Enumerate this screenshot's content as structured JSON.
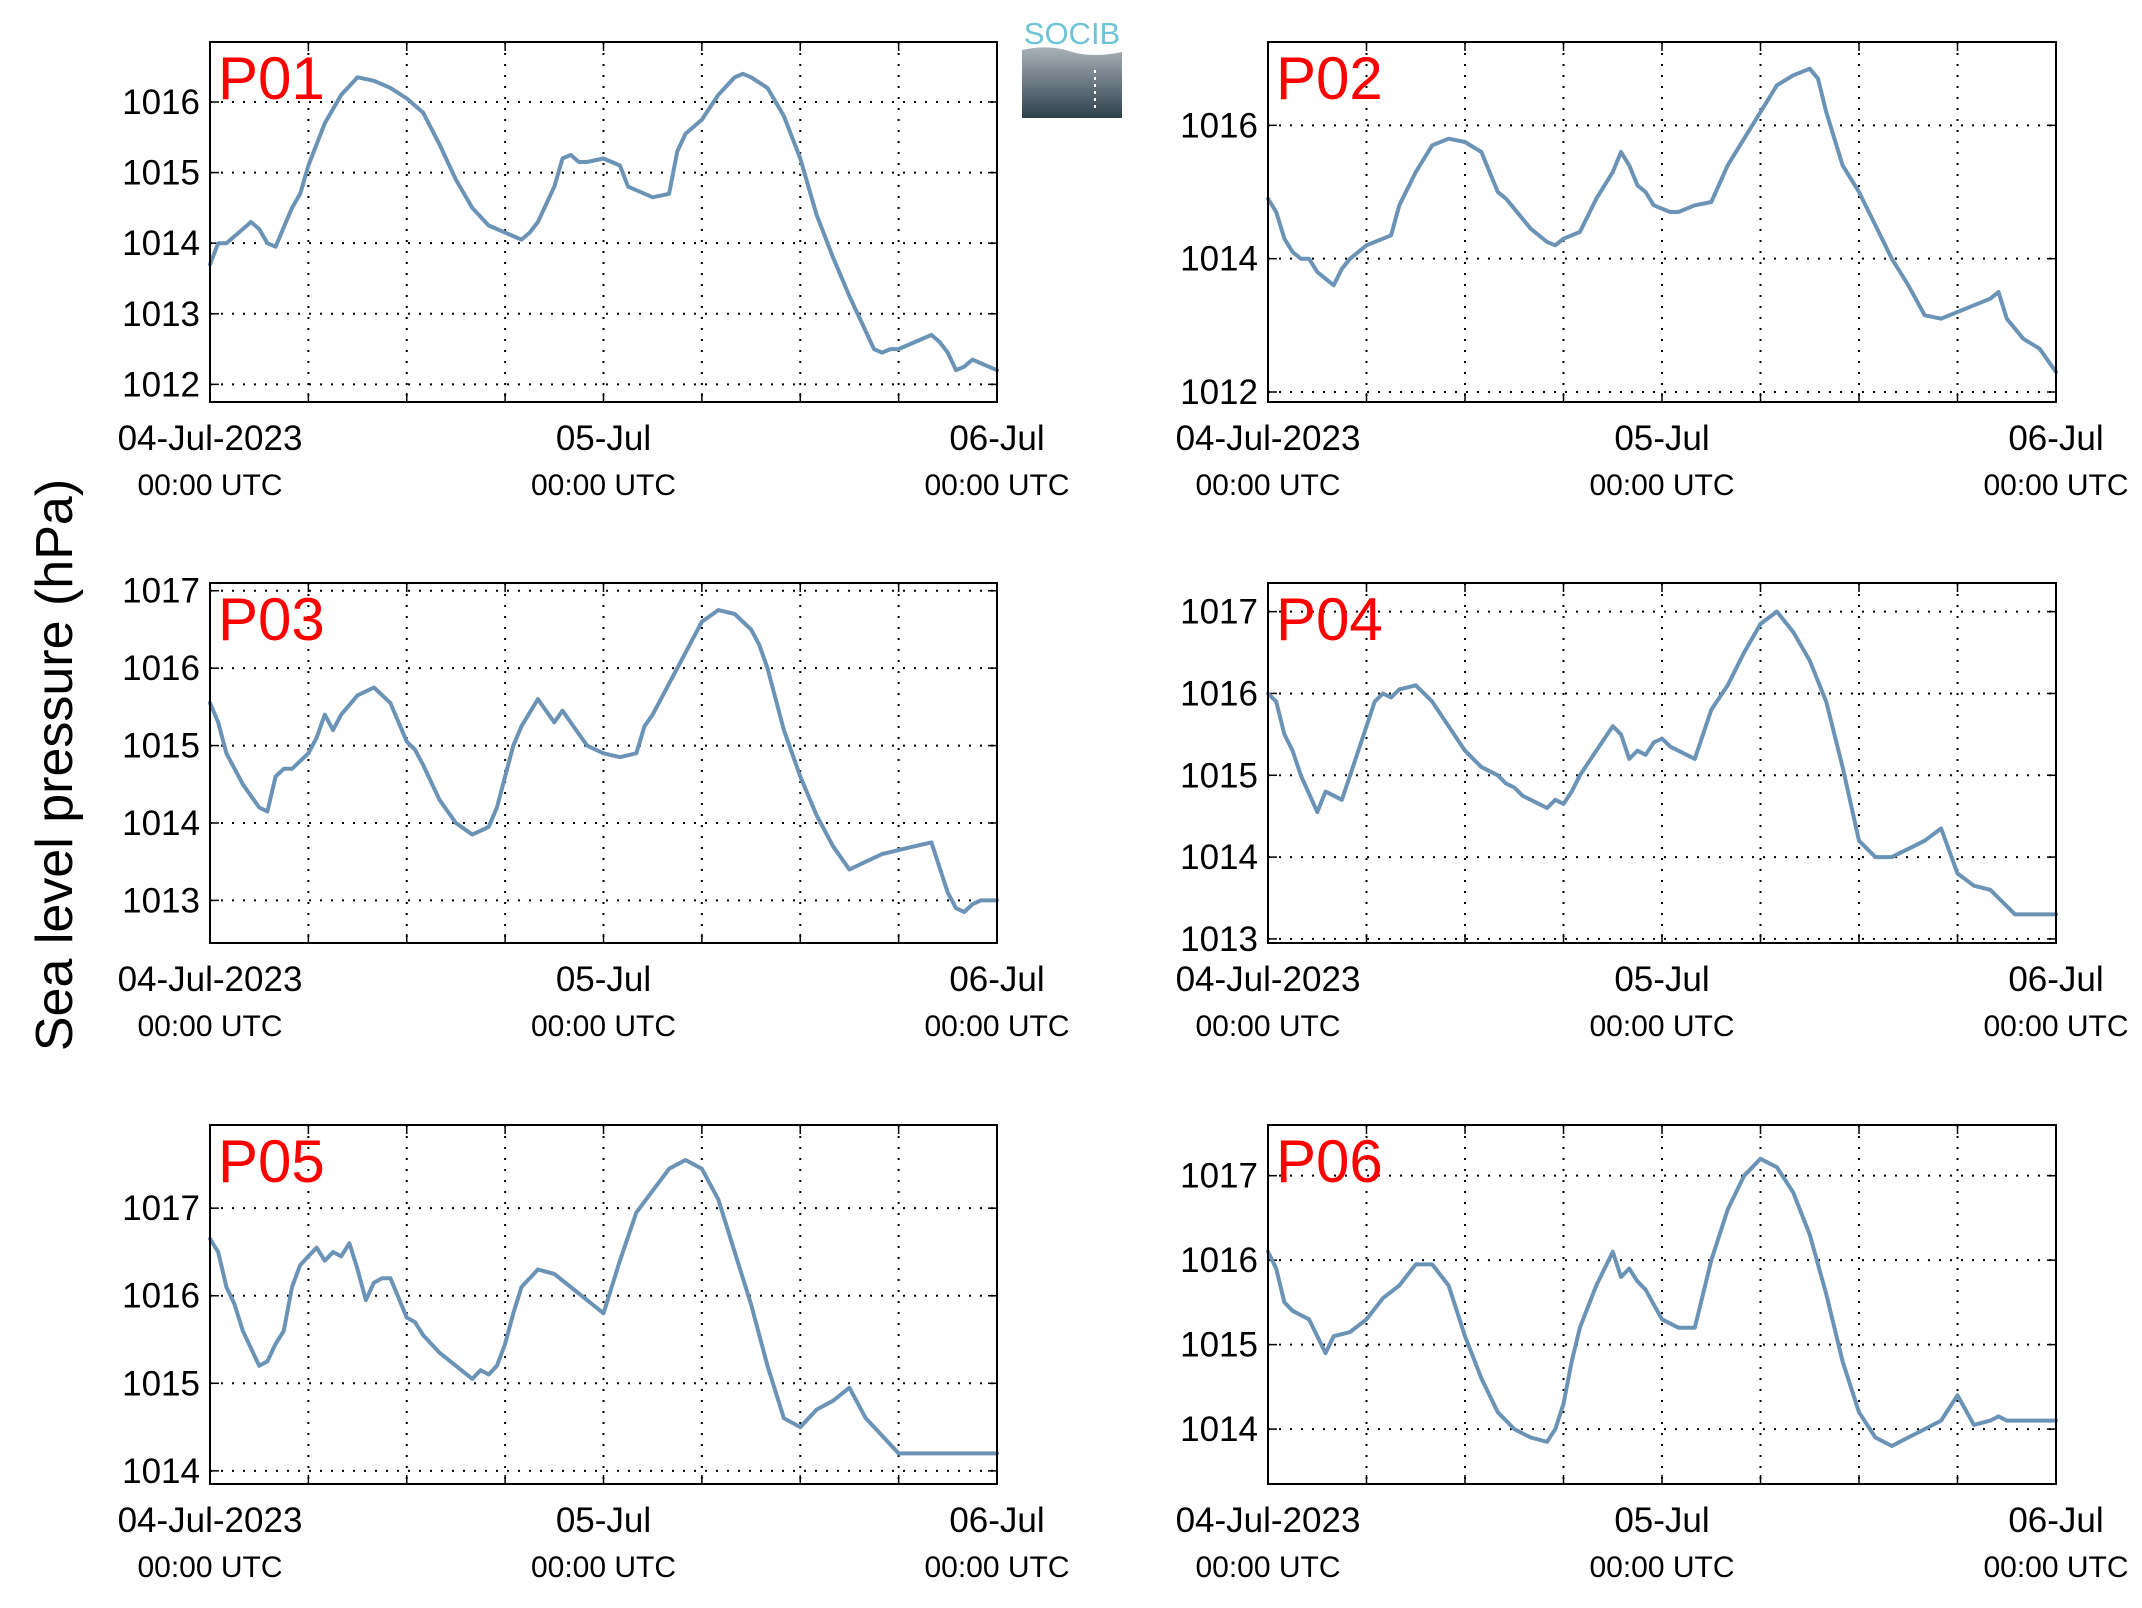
{
  "figure": {
    "ylabel": "Sea level pressure (hPa)",
    "logo_text": "SOCIB",
    "line_color": "#6a93b6",
    "title_color": "#ff0000"
  },
  "chart_data": [
    {
      "type": "line",
      "title": "P01",
      "ylabel": "Sea level pressure (hPa)",
      "xlim": [
        0,
        48
      ],
      "ylim": [
        1011.75,
        1016.85
      ],
      "yticks": [
        1012,
        1013,
        1014,
        1015,
        1016
      ],
      "x_ticks": [
        {
          "x": 0,
          "label": "04-Jul-2023",
          "sub": "00:00 UTC"
        },
        {
          "x": 24,
          "label": "05-Jul",
          "sub": "00:00 UTC"
        },
        {
          "x": 48,
          "label": "06-Jul",
          "sub": "00:00 UTC"
        }
      ],
      "x_grid": [
        6,
        12,
        18,
        24,
        30,
        36,
        42
      ],
      "grid": true,
      "x": [
        0,
        0.5,
        1,
        1.5,
        2,
        2.5,
        3,
        3.5,
        4,
        5,
        5.5,
        6,
        6.5,
        7,
        8,
        9,
        10,
        11,
        12,
        13,
        14,
        15,
        16,
        17,
        18,
        18.5,
        19,
        19.5,
        20,
        21,
        21.5,
        22,
        22.5,
        23,
        24,
        25,
        25.5,
        26,
        27,
        28,
        28.5,
        29,
        29.5,
        30,
        31,
        32,
        32.5,
        33,
        34,
        35,
        36,
        37,
        38,
        39,
        40,
        40.5,
        41,
        41.5,
        42,
        43,
        44,
        44.5,
        45,
        45.5,
        46,
        46.5,
        47,
        48
      ],
      "y": [
        1013.7,
        1014.0,
        1014.0,
        1014.1,
        1014.2,
        1014.3,
        1014.2,
        1014.0,
        1013.95,
        1014.5,
        1014.7,
        1015.1,
        1015.4,
        1015.7,
        1016.1,
        1016.35,
        1016.3,
        1016.2,
        1016.05,
        1015.85,
        1015.4,
        1014.9,
        1014.5,
        1014.25,
        1014.15,
        1014.1,
        1014.05,
        1014.15,
        1014.3,
        1014.8,
        1015.2,
        1015.25,
        1015.15,
        1015.15,
        1015.2,
        1015.1,
        1014.8,
        1014.75,
        1014.65,
        1014.7,
        1015.3,
        1015.55,
        1015.65,
        1015.75,
        1016.1,
        1016.35,
        1016.4,
        1016.35,
        1016.2,
        1015.8,
        1015.2,
        1014.4,
        1013.8,
        1013.25,
        1012.75,
        1012.5,
        1012.45,
        1012.5,
        1012.5,
        1012.6,
        1012.7,
        1012.6,
        1012.45,
        1012.2,
        1012.25,
        1012.35,
        1012.3,
        1012.2
      ]
    },
    {
      "type": "line",
      "title": "P02",
      "ylabel": "Sea level pressure (hPa)",
      "xlim": [
        0,
        48
      ],
      "ylim": [
        1011.85,
        1017.25
      ],
      "yticks": [
        1012,
        1014,
        1016
      ],
      "x_ticks": [
        {
          "x": 0,
          "label": "04-Jul-2023",
          "sub": "00:00 UTC"
        },
        {
          "x": 24,
          "label": "05-Jul",
          "sub": "00:00 UTC"
        },
        {
          "x": 48,
          "label": "06-Jul",
          "sub": "00:00 UTC"
        }
      ],
      "x_grid": [
        6,
        12,
        18,
        24,
        30,
        36,
        42
      ],
      "grid": true,
      "x": [
        0,
        0.5,
        1,
        1.5,
        2,
        2.5,
        3,
        3.5,
        4,
        4.5,
        5,
        6,
        6.5,
        7,
        7.5,
        8,
        9,
        10,
        11,
        12,
        13,
        14,
        14.5,
        15,
        16,
        17,
        17.5,
        18,
        18.5,
        19,
        20,
        21,
        21.5,
        22,
        22.5,
        23,
        23.5,
        24,
        24.5,
        25,
        26,
        27,
        28,
        29,
        30,
        31,
        32,
        33,
        33.5,
        34,
        35,
        36,
        37,
        38,
        39,
        40,
        41,
        42,
        42.5,
        43,
        44,
        44.5,
        45,
        46,
        47,
        48
      ],
      "y": [
        1014.9,
        1014.7,
        1014.3,
        1014.1,
        1014.0,
        1014.0,
        1013.8,
        1013.7,
        1013.6,
        1013.85,
        1014.0,
        1014.2,
        1014.25,
        1014.3,
        1014.35,
        1014.8,
        1015.3,
        1015.7,
        1015.8,
        1015.75,
        1015.6,
        1015.0,
        1014.9,
        1014.75,
        1014.45,
        1014.25,
        1014.2,
        1014.3,
        1014.35,
        1014.4,
        1014.9,
        1015.3,
        1015.6,
        1015.4,
        1015.1,
        1015.0,
        1014.8,
        1014.75,
        1014.7,
        1014.7,
        1014.8,
        1014.85,
        1015.4,
        1015.8,
        1016.2,
        1016.6,
        1016.75,
        1016.85,
        1016.7,
        1016.2,
        1015.4,
        1015.0,
        1014.5,
        1014.0,
        1013.6,
        1013.15,
        1013.1,
        1013.2,
        1013.25,
        1013.3,
        1013.4,
        1013.5,
        1013.1,
        1012.8,
        1012.65,
        1012.3
      ]
    },
    {
      "type": "line",
      "title": "P03",
      "ylabel": "Sea level pressure (hPa)",
      "xlim": [
        0,
        48
      ],
      "ylim": [
        1012.45,
        1017.1
      ],
      "yticks": [
        1013,
        1014,
        1015,
        1016,
        1017
      ],
      "x_ticks": [
        {
          "x": 0,
          "label": "04-Jul-2023",
          "sub": "00:00 UTC"
        },
        {
          "x": 24,
          "label": "05-Jul",
          "sub": "00:00 UTC"
        },
        {
          "x": 48,
          "label": "06-Jul",
          "sub": "00:00 UTC"
        }
      ],
      "x_grid": [
        6,
        12,
        18,
        24,
        30,
        36,
        42
      ],
      "grid": true,
      "x": [
        0,
        0.5,
        1,
        1.5,
        2,
        3,
        3.5,
        4,
        4.5,
        5,
        6,
        6.5,
        7,
        7.5,
        8,
        9,
        10,
        11,
        12,
        12.5,
        13,
        14,
        15,
        16,
        17,
        17.5,
        18,
        18.5,
        19,
        20,
        21,
        21.5,
        22,
        22.5,
        23,
        23.5,
        24,
        25,
        26,
        26.5,
        27,
        28,
        29,
        30,
        31,
        32,
        33,
        33.5,
        34,
        35,
        36,
        37,
        38,
        39,
        40,
        41,
        42,
        43,
        44,
        45,
        45.5,
        46,
        46.5,
        47,
        48
      ],
      "y": [
        1015.55,
        1015.3,
        1014.9,
        1014.7,
        1014.5,
        1014.2,
        1014.15,
        1014.6,
        1014.7,
        1014.7,
        1014.9,
        1015.1,
        1015.4,
        1015.2,
        1015.4,
        1015.65,
        1015.75,
        1015.55,
        1015.05,
        1014.95,
        1014.75,
        1014.3,
        1014.0,
        1013.85,
        1013.95,
        1014.2,
        1014.6,
        1015.0,
        1015.25,
        1015.6,
        1015.3,
        1015.45,
        1015.3,
        1015.15,
        1015.0,
        1014.95,
        1014.9,
        1014.85,
        1014.9,
        1015.25,
        1015.4,
        1015.8,
        1016.2,
        1016.6,
        1016.75,
        1016.7,
        1016.5,
        1016.3,
        1016.0,
        1015.2,
        1014.6,
        1014.1,
        1013.7,
        1013.4,
        1013.5,
        1013.6,
        1013.65,
        1013.7,
        1013.75,
        1013.1,
        1012.9,
        1012.85,
        1012.95,
        1013.0,
        1013.0
      ]
    },
    {
      "type": "line",
      "title": "P04",
      "ylabel": "Sea level pressure (hPa)",
      "xlim": [
        0,
        48
      ],
      "ylim": [
        1012.95,
        1017.35
      ],
      "yticks": [
        1013,
        1014,
        1015,
        1016,
        1017
      ],
      "x_ticks": [
        {
          "x": 0,
          "label": "04-Jul-2023",
          "sub": "00:00 UTC"
        },
        {
          "x": 24,
          "label": "05-Jul",
          "sub": "00:00 UTC"
        },
        {
          "x": 48,
          "label": "06-Jul",
          "sub": "00:00 UTC"
        }
      ],
      "x_grid": [
        6,
        12,
        18,
        24,
        30,
        36,
        42
      ],
      "grid": true,
      "x": [
        0,
        0.5,
        1,
        1.5,
        2,
        3,
        3.5,
        4,
        4.5,
        5,
        6,
        6.5,
        7,
        7.5,
        8,
        9,
        10,
        11,
        12,
        13,
        14,
        14.5,
        15,
        15.5,
        16,
        17,
        17.5,
        18,
        18.5,
        19,
        20,
        21,
        21.5,
        22,
        22.5,
        23,
        23.5,
        24,
        24.5,
        25,
        26,
        27,
        28,
        29,
        30,
        31,
        32,
        33,
        34,
        35,
        36,
        37,
        38,
        39,
        40,
        41,
        42,
        43,
        44,
        44.5,
        45,
        45.5,
        46,
        46.5,
        47,
        48
      ],
      "y": [
        1016.0,
        1015.9,
        1015.5,
        1015.3,
        1015.0,
        1014.55,
        1014.8,
        1014.75,
        1014.7,
        1015.0,
        1015.6,
        1015.9,
        1016.0,
        1015.95,
        1016.05,
        1016.1,
        1015.9,
        1015.6,
        1015.3,
        1015.1,
        1015.0,
        1014.9,
        1014.85,
        1014.75,
        1014.7,
        1014.6,
        1014.7,
        1014.65,
        1014.8,
        1015.0,
        1015.3,
        1015.6,
        1015.5,
        1015.2,
        1015.3,
        1015.25,
        1015.4,
        1015.45,
        1015.35,
        1015.3,
        1015.2,
        1015.8,
        1016.1,
        1016.5,
        1016.85,
        1017.0,
        1016.75,
        1016.4,
        1015.9,
        1015.1,
        1014.2,
        1014.0,
        1014.0,
        1014.1,
        1014.2,
        1014.35,
        1013.8,
        1013.65,
        1013.6,
        1013.5,
        1013.4,
        1013.3,
        1013.3,
        1013.3,
        1013.3,
        1013.3
      ]
    },
    {
      "type": "line",
      "title": "P05",
      "ylabel": "Sea level pressure (hPa)",
      "xlim": [
        0,
        48
      ],
      "ylim": [
        1013.85,
        1017.95
      ],
      "yticks": [
        1014,
        1015,
        1016,
        1017
      ],
      "x_ticks": [
        {
          "x": 0,
          "label": "04-Jul-2023",
          "sub": "00:00 UTC"
        },
        {
          "x": 24,
          "label": "05-Jul",
          "sub": "00:00 UTC"
        },
        {
          "x": 48,
          "label": "06-Jul",
          "sub": "00:00 UTC"
        }
      ],
      "x_grid": [
        6,
        12,
        18,
        24,
        30,
        36,
        42
      ],
      "grid": true,
      "x": [
        0,
        0.5,
        1,
        1.5,
        2,
        3,
        3.5,
        4,
        4.5,
        5,
        5.5,
        6,
        6.5,
        7,
        7.5,
        8,
        8.5,
        9,
        9.5,
        10,
        10.5,
        11,
        12,
        12.5,
        13,
        14,
        15,
        16,
        16.5,
        17,
        17.5,
        18,
        18.5,
        19,
        20,
        21,
        22,
        23,
        24,
        25,
        26,
        27,
        28,
        29,
        30,
        31,
        32,
        33,
        34,
        35,
        36,
        37,
        38,
        39,
        40,
        41,
        42,
        43,
        43.5,
        44,
        44.5,
        45,
        45.5,
        46,
        47,
        48
      ],
      "y": [
        1016.65,
        1016.5,
        1016.1,
        1015.9,
        1015.6,
        1015.2,
        1015.25,
        1015.45,
        1015.6,
        1016.1,
        1016.35,
        1016.45,
        1016.55,
        1016.4,
        1016.5,
        1016.45,
        1016.6,
        1016.3,
        1015.95,
        1016.15,
        1016.2,
        1016.2,
        1015.75,
        1015.7,
        1015.55,
        1015.35,
        1015.2,
        1015.05,
        1015.15,
        1015.1,
        1015.2,
        1015.45,
        1015.8,
        1016.1,
        1016.3,
        1016.25,
        1016.1,
        1015.95,
        1015.8,
        1016.4,
        1016.95,
        1017.2,
        1017.45,
        1017.55,
        1017.45,
        1017.1,
        1016.5,
        1015.9,
        1015.2,
        1014.6,
        1014.5,
        1014.7,
        1014.8,
        1014.95,
        1014.6,
        1014.4,
        1014.2,
        1014.2,
        1014.2,
        1014.2,
        1014.2,
        1014.2,
        1014.2,
        1014.2,
        1014.2,
        1014.2
      ]
    },
    {
      "type": "line",
      "title": "P06",
      "ylabel": "Sea level pressure (hPa)",
      "xlim": [
        0,
        48
      ],
      "ylim": [
        1013.35,
        1017.6
      ],
      "yticks": [
        1014,
        1015,
        1016,
        1017
      ],
      "x_ticks": [
        {
          "x": 0,
          "label": "04-Jul-2023",
          "sub": "00:00 UTC"
        },
        {
          "x": 24,
          "label": "05-Jul",
          "sub": "00:00 UTC"
        },
        {
          "x": 48,
          "label": "06-Jul",
          "sub": "00:00 UTC"
        }
      ],
      "x_grid": [
        6,
        12,
        18,
        24,
        30,
        36,
        42
      ],
      "grid": true,
      "x": [
        0,
        0.5,
        1,
        1.5,
        2,
        2.5,
        3,
        3.5,
        4,
        5,
        6,
        7,
        8,
        9,
        10,
        11,
        12,
        13,
        14,
        15,
        16,
        17,
        17.5,
        18,
        18.5,
        19,
        20,
        21,
        21.5,
        22,
        22.5,
        23,
        24,
        25,
        26,
        27,
        28,
        29,
        30,
        31,
        32,
        33,
        34,
        35,
        36,
        37,
        38,
        39,
        40,
        41,
        42,
        43,
        44,
        44.5,
        45,
        45.5,
        46,
        47,
        48
      ],
      "y": [
        1016.1,
        1015.9,
        1015.5,
        1015.4,
        1015.35,
        1015.3,
        1015.1,
        1014.9,
        1015.1,
        1015.15,
        1015.3,
        1015.55,
        1015.7,
        1015.95,
        1015.95,
        1015.7,
        1015.1,
        1014.6,
        1014.2,
        1014.0,
        1013.9,
        1013.85,
        1014.0,
        1014.3,
        1014.8,
        1015.2,
        1015.7,
        1016.1,
        1015.8,
        1015.9,
        1015.75,
        1015.65,
        1015.3,
        1015.2,
        1015.2,
        1016.0,
        1016.6,
        1017.0,
        1017.2,
        1017.1,
        1016.8,
        1016.3,
        1015.6,
        1014.8,
        1014.2,
        1013.9,
        1013.8,
        1013.9,
        1014.0,
        1014.1,
        1014.4,
        1014.05,
        1014.1,
        1014.15,
        1014.1,
        1014.1,
        1014.1,
        1014.1,
        1014.1
      ]
    }
  ]
}
